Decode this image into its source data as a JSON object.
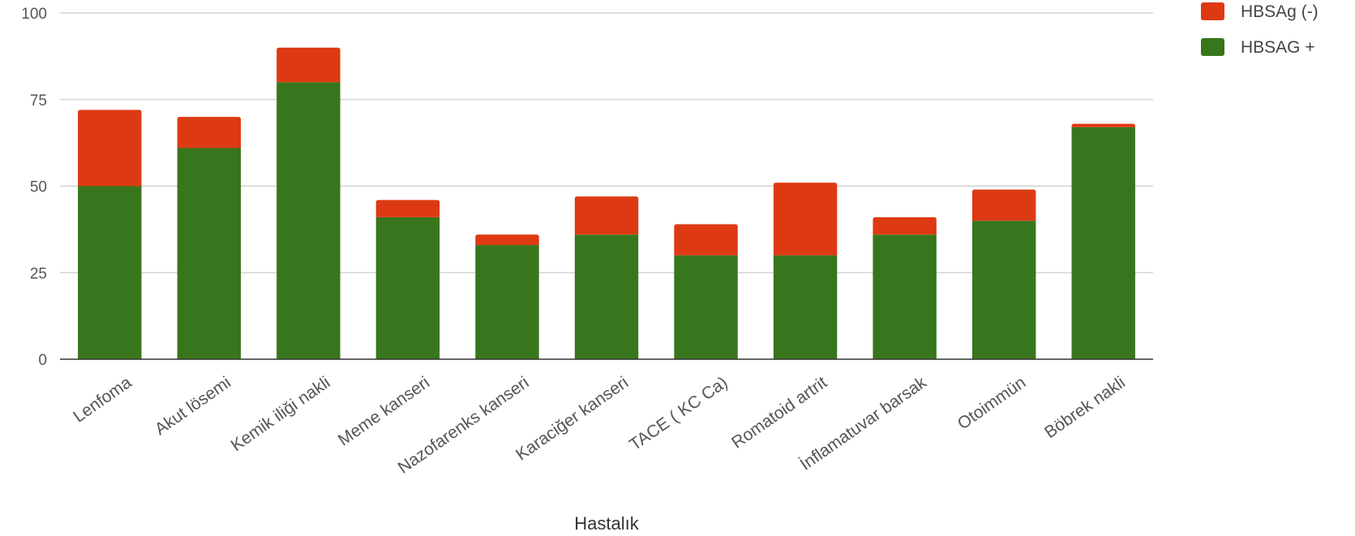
{
  "chart_data": {
    "type": "bar",
    "stacked": true,
    "title": "",
    "xlabel": "Hastalık",
    "ylabel": "",
    "ylim": [
      0,
      100
    ],
    "yticks": [
      0,
      25,
      50,
      75,
      100
    ],
    "grid": true,
    "legend_position": "top-right",
    "categories": [
      "Lenfoma",
      "Akut lösemi",
      "Kemik iliği nakli",
      "Meme kanseri",
      "Nazofarenks kanseri",
      "Karaciğer kanseri",
      "TACE ( KC Ca)",
      "Romatoid artrit",
      "İnflamatuvar barsak",
      "Otoimmün",
      "Böbrek nakli"
    ],
    "series": [
      {
        "name": "HBSAG +",
        "color": "#38761d",
        "values": [
          50,
          61,
          80,
          41,
          33,
          36,
          30,
          30,
          36,
          40,
          67
        ]
      },
      {
        "name": "HBSAg (-)",
        "color": "#dd3a13",
        "values": [
          22,
          9,
          10,
          5,
          3,
          11,
          9,
          21,
          5,
          9,
          1
        ]
      }
    ],
    "legend_order": [
      "HBSAg (-)",
      "HBSAG +"
    ]
  }
}
